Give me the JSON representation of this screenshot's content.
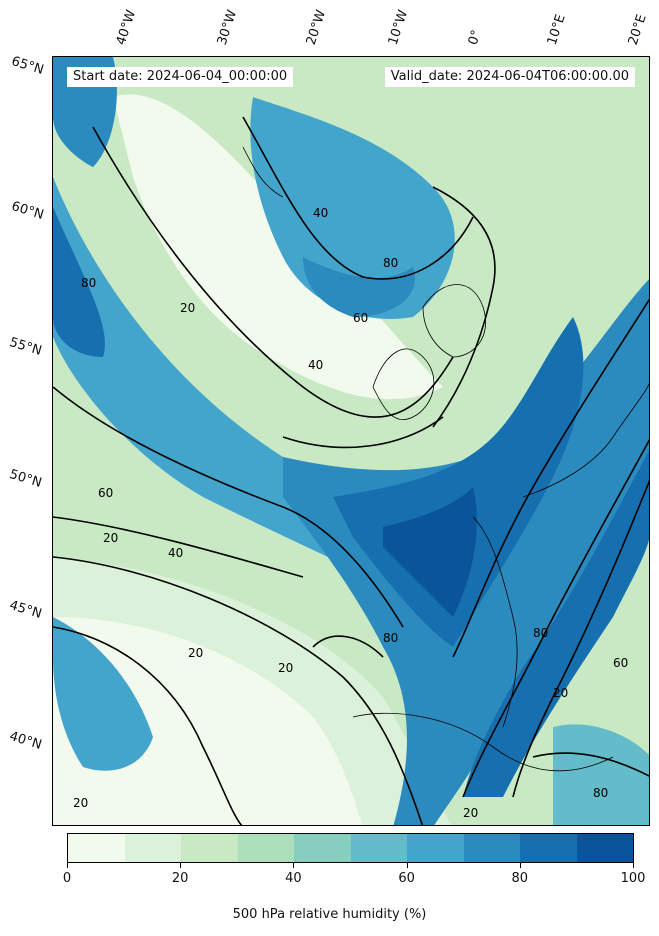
{
  "info": {
    "start_date": "Start date: 2024-06-04_00:00:00",
    "valid_date": "Valid_date: 2024-06-04T06:00:00.00"
  },
  "lat_labels": [
    "65°N",
    "60°N",
    "55°N",
    "50°N",
    "45°N",
    "40°N"
  ],
  "lon_labels": [
    "40°W",
    "30°W",
    "20°W",
    "10°W",
    "0°",
    "10°E",
    "20°E"
  ],
  "colorbar": {
    "title": "500 hPa relative humidity (%)",
    "ticks": [
      "0",
      "20",
      "40",
      "60",
      "80",
      "100"
    ],
    "colors": [
      "#f2faee",
      "#dcf1d9",
      "#c8e9c3",
      "#aadfba",
      "#86cfbe",
      "#64bcca",
      "#44a5cc",
      "#2b8bbe",
      "#166faf",
      "#09549b"
    ]
  },
  "contour_labels": [
    "20",
    "40",
    "60",
    "80"
  ]
}
